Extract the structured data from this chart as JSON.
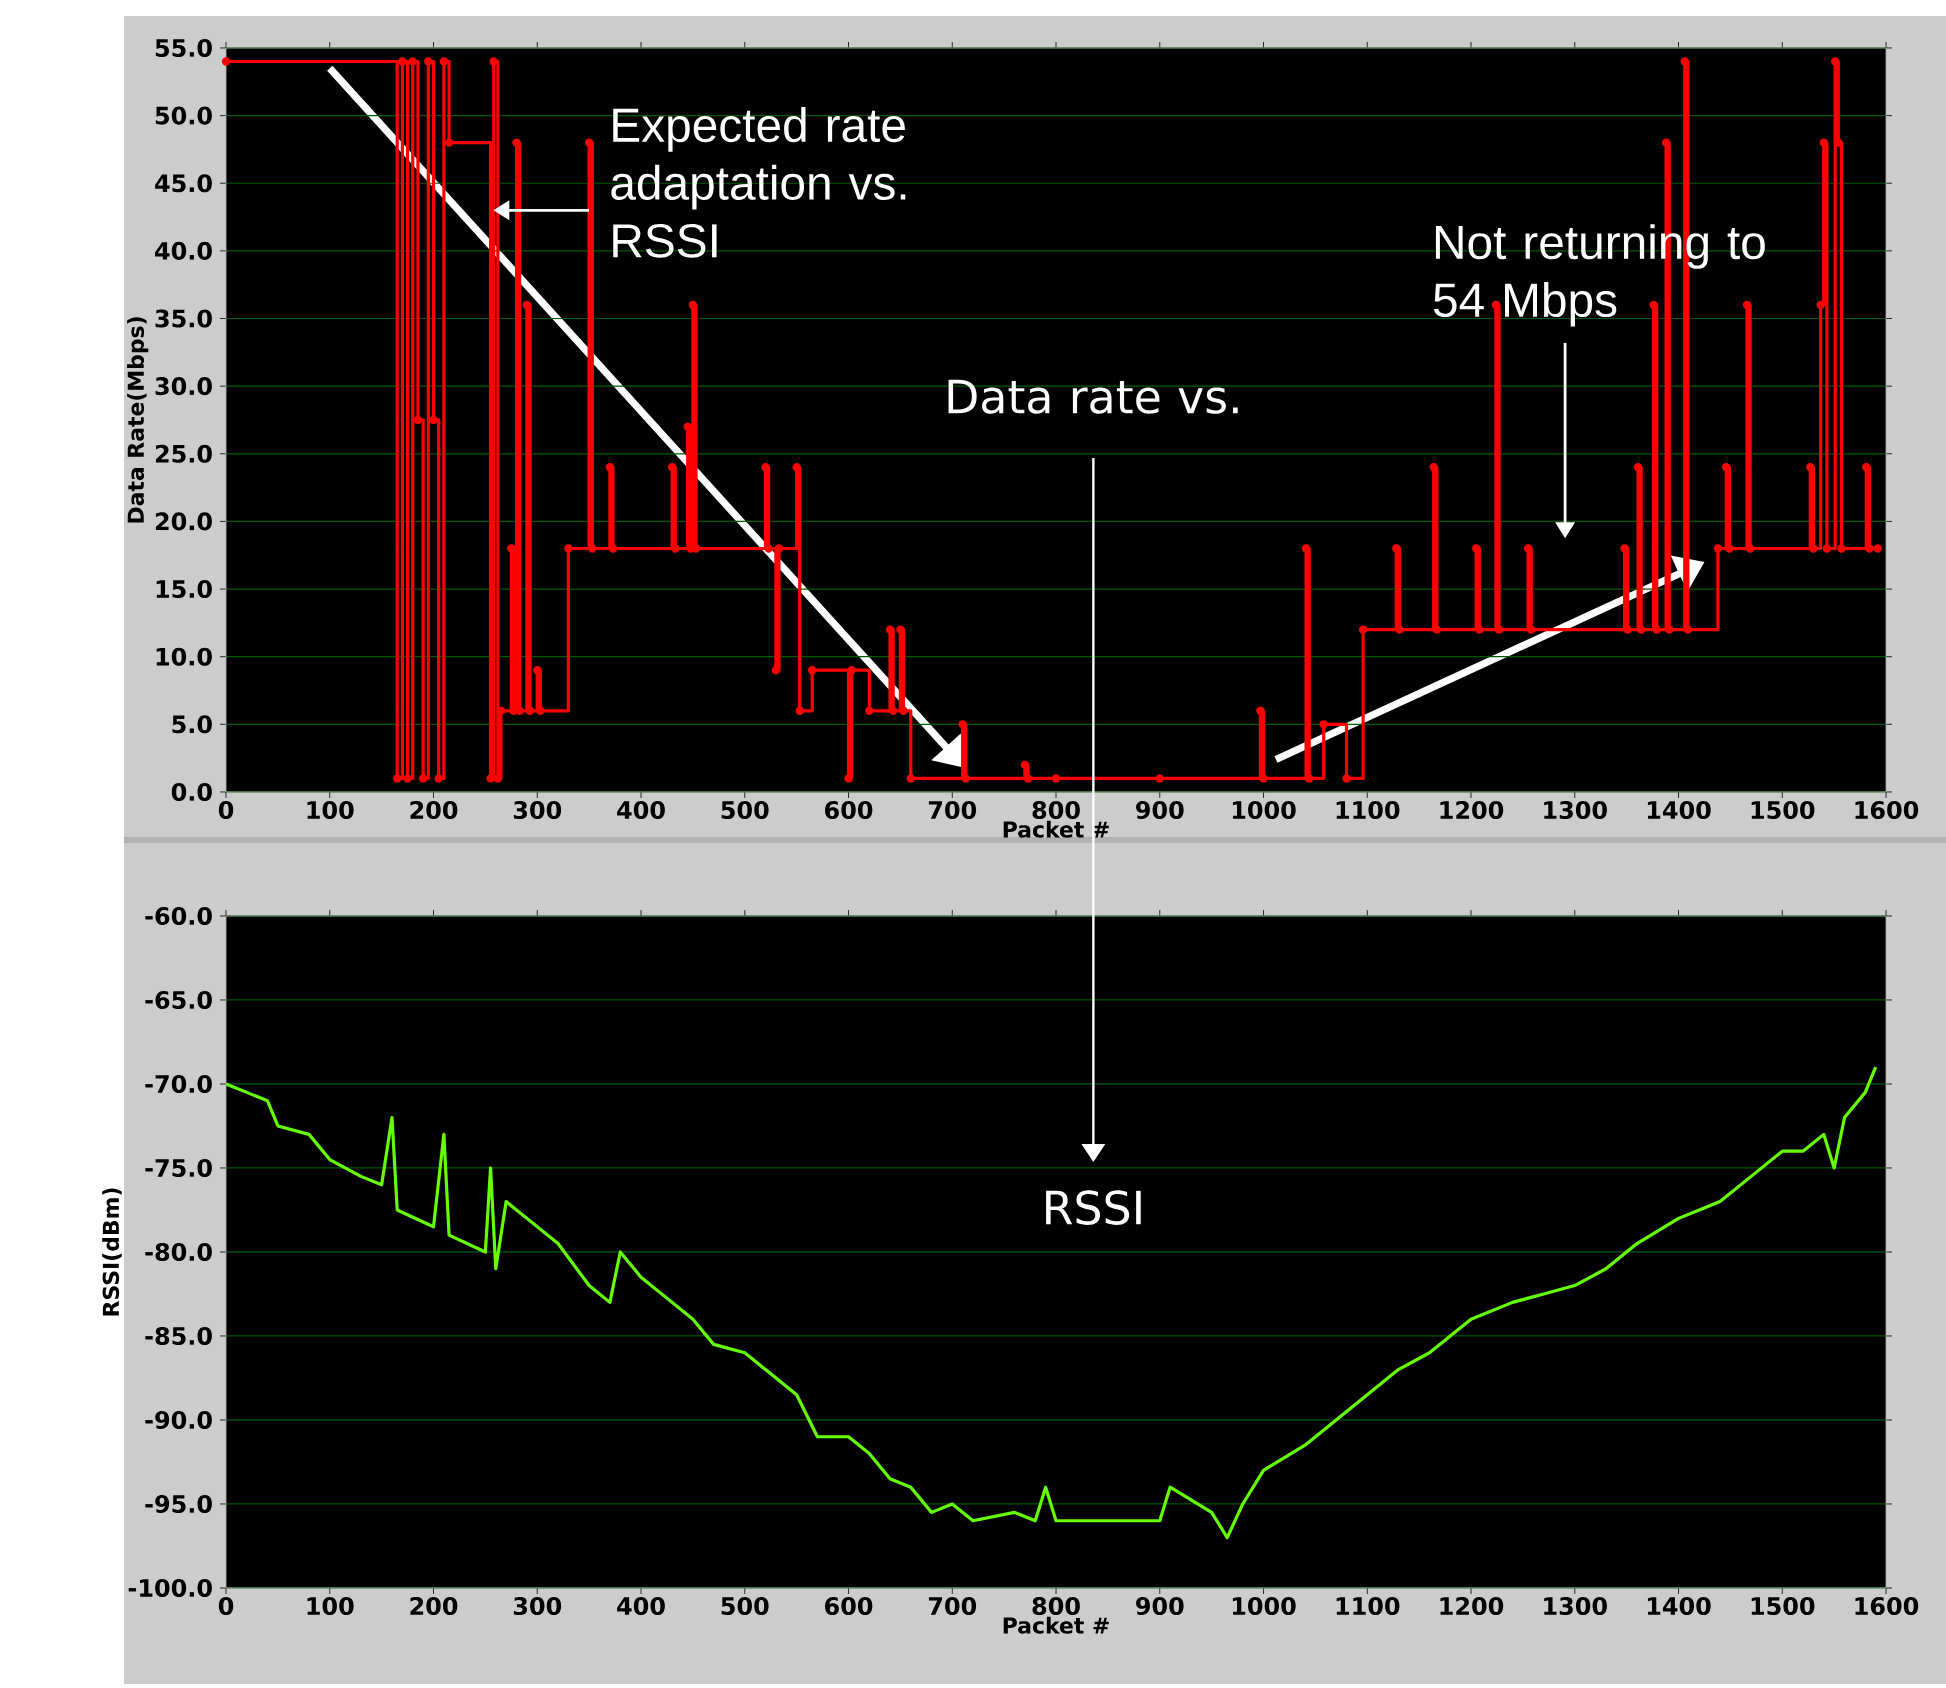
{
  "chart_data": [
    {
      "type": "step",
      "xlabel": "Packet #",
      "ylabel": "Data Rate(Mbps)",
      "x": [
        0,
        165,
        170,
        175,
        180,
        185,
        190,
        195,
        200,
        205,
        210,
        215,
        255,
        258,
        262,
        265,
        275,
        277,
        280,
        283,
        290,
        293,
        300,
        303,
        330,
        350,
        353,
        370,
        373,
        430,
        433,
        445,
        448,
        450,
        453,
        520,
        523,
        530,
        533,
        550,
        553,
        565,
        600,
        603,
        620,
        640,
        643,
        650,
        653,
        660,
        710,
        713,
        770,
        773,
        800,
        900,
        997,
        1000,
        1041,
        1044,
        1058,
        1080,
        1096,
        1128,
        1131,
        1164,
        1167,
        1205,
        1208,
        1224,
        1227,
        1255,
        1258,
        1348,
        1351,
        1361,
        1364,
        1376,
        1379,
        1388,
        1391,
        1406,
        1409,
        1438,
        1446,
        1449,
        1466,
        1469,
        1527,
        1530,
        1537,
        1540,
        1543,
        1551,
        1554,
        1557,
        1581,
        1584,
        1592
      ],
      "series": [
        {
          "color": "#ff0000",
          "values": [
            54,
            1,
            54,
            1,
            54,
            27.5,
            1,
            54,
            27.5,
            1,
            54,
            48,
            1,
            54,
            1,
            6,
            18,
            6,
            48,
            6,
            36,
            6,
            9,
            6,
            18,
            48,
            18,
            24,
            18,
            24,
            18,
            27,
            18,
            36,
            18,
            24,
            18,
            9,
            18,
            24,
            6,
            9,
            1,
            9,
            6,
            12,
            6,
            12,
            6,
            1,
            5,
            1,
            2,
            1,
            1,
            1,
            6,
            1,
            18,
            1,
            5,
            1,
            12,
            18,
            12,
            24,
            12,
            18,
            12,
            36,
            12,
            18,
            12,
            18,
            12,
            24,
            12,
            36,
            12,
            48,
            12,
            54,
            12,
            18,
            24,
            18,
            36,
            18,
            24,
            18,
            36,
            48,
            18,
            54,
            48,
            18,
            24,
            18,
            18
          ]
        }
      ],
      "xlim": [
        0,
        1600
      ],
      "xticks": [
        0,
        100,
        200,
        300,
        400,
        500,
        600,
        700,
        800,
        900,
        1000,
        1100,
        1200,
        1300,
        1400,
        1500,
        1600
      ],
      "ylim": [
        0,
        55
      ],
      "yticks": [
        {
          "value": 0,
          "label": "0.0"
        },
        {
          "value": 5,
          "label": "5.0"
        },
        {
          "value": 10,
          "label": "10.0"
        },
        {
          "value": 15,
          "label": "15.0"
        },
        {
          "value": 20,
          "label": "20.0"
        },
        {
          "value": 25,
          "label": "25.0"
        },
        {
          "value": 30,
          "label": "30.0"
        },
        {
          "value": 35,
          "label": "35.0"
        },
        {
          "value": 40,
          "label": "40.0"
        },
        {
          "value": 45,
          "label": "45.0"
        },
        {
          "value": 50,
          "label": "50.0"
        },
        {
          "value": 55,
          "label": "55.0"
        }
      ],
      "grid": "y",
      "marker": "circle",
      "annotations": [
        {
          "text": "Expected rate adaptation vs. RSSI",
          "x": 250,
          "y": 43
        },
        "Data rate vs.",
        "Not returning to 54 Mbps"
      ]
    },
    {
      "type": "line",
      "xlabel": "Packet #",
      "ylabel": "RSSI(dBm)",
      "x": [
        0,
        20,
        40,
        50,
        80,
        100,
        130,
        150,
        160,
        165,
        200,
        210,
        215,
        250,
        255,
        260,
        270,
        290,
        320,
        350,
        370,
        380,
        400,
        430,
        450,
        470,
        500,
        520,
        550,
        570,
        600,
        620,
        640,
        660,
        680,
        700,
        720,
        760,
        780,
        790,
        800,
        900,
        910,
        950,
        965,
        980,
        1000,
        1040,
        1070,
        1100,
        1130,
        1160,
        1200,
        1240,
        1270,
        1300,
        1330,
        1360,
        1400,
        1420,
        1440,
        1470,
        1500,
        1520,
        1540,
        1550,
        1560,
        1580,
        1590
      ],
      "series": [
        {
          "color": "#66ff00",
          "values": [
            -70,
            -70.5,
            -71,
            -72.5,
            -73,
            -74.5,
            -75.5,
            -76,
            -72,
            -77.5,
            -78.5,
            -73,
            -79,
            -80,
            -75,
            -81,
            -77,
            -78,
            -79.5,
            -82,
            -83,
            -80,
            -81.5,
            -83,
            -84,
            -85.5,
            -86,
            -87,
            -88.5,
            -91,
            -91,
            -92,
            -93.5,
            -94,
            -95.5,
            -95,
            -96,
            -95.5,
            -96,
            -94,
            -96,
            -96,
            -94,
            -95.5,
            -97,
            -95,
            -93,
            -91.5,
            -90,
            -88.5,
            -87,
            -86,
            -84,
            -83,
            -82.5,
            -82,
            -81,
            -79.5,
            -78,
            -77.5,
            -77,
            -75.5,
            -74,
            -74,
            -73,
            -75,
            -72,
            -70.5,
            -69
          ]
        }
      ],
      "xlim": [
        0,
        1600
      ],
      "xticks": [
        0,
        100,
        200,
        300,
        400,
        500,
        600,
        700,
        800,
        900,
        1000,
        1100,
        1200,
        1300,
        1400,
        1500,
        1600
      ],
      "ylim": [
        -100,
        -60
      ],
      "yticks": [
        {
          "value": -100,
          "label": "-100.0"
        },
        {
          "value": -95,
          "label": "-95.0"
        },
        {
          "value": -90,
          "label": "-90.0"
        },
        {
          "value": -85,
          "label": "-85.0"
        },
        {
          "value": -80,
          "label": "-80.0"
        },
        {
          "value": -75,
          "label": "-75.0"
        },
        {
          "value": -70,
          "label": "-70.0"
        },
        {
          "value": -65,
          "label": "-65.0"
        },
        {
          "value": -60,
          "label": "-60.0"
        }
      ],
      "grid": "y",
      "annotations": [
        "RSSI"
      ]
    }
  ]
}
